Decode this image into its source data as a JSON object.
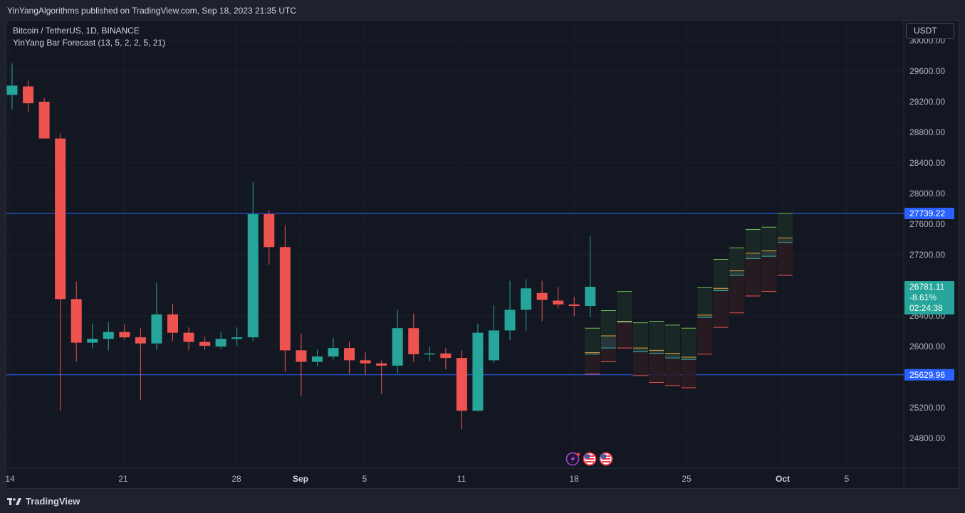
{
  "header": {
    "published": "YinYangAlgorithms published on TradingView.com, Sep 18, 2023 21:35 UTC"
  },
  "legend": {
    "symbol": "Bitcoin / TetherUS, 1D, BINANCE",
    "indicator": "YinYang Bar Forecast (13, 5, 2, 2, 5, 21)"
  },
  "currency_button": "USDT",
  "footer": {
    "brand": "TradingView"
  },
  "colors": {
    "up": "#26a69a",
    "down": "#ef5350",
    "level_line": "#2962ff",
    "background": "#131722"
  },
  "price_axis": {
    "ticks": [
      "30000.00",
      "29600.00",
      "29200.00",
      "28800.00",
      "28400.00",
      "28000.00",
      "27600.00",
      "27200.00",
      "26400.00",
      "26000.00",
      "25200.00",
      "24800.00"
    ],
    "tick_values": [
      30000,
      29600,
      29200,
      28800,
      28400,
      28000,
      27600,
      27200,
      26400,
      26000,
      25200,
      24800
    ],
    "labels": {
      "upper_level": "27739.22",
      "last_price": "26781.11",
      "change": "-8.61%",
      "countdown": "02:24:38",
      "lower_level": "25629.96"
    }
  },
  "time_axis": {
    "labels": [
      "14",
      "21",
      "28",
      "Sep",
      "5",
      "11",
      "18",
      "25",
      "Oct",
      "5"
    ]
  },
  "chart_data": {
    "type": "candlestick",
    "levels": [
      27739.22,
      25629.96
    ],
    "last_price": 26781.11,
    "candles": [
      {
        "o": 29290,
        "h": 29700,
        "l": 29100,
        "c": 29410
      },
      {
        "o": 29400,
        "h": 29480,
        "l": 29070,
        "c": 29180
      },
      {
        "o": 29200,
        "h": 29250,
        "l": 28720,
        "c": 28720
      },
      {
        "o": 28720,
        "h": 28780,
        "l": 25160,
        "c": 26620
      },
      {
        "o": 26620,
        "h": 26850,
        "l": 25800,
        "c": 26050
      },
      {
        "o": 26050,
        "h": 26300,
        "l": 25980,
        "c": 26100
      },
      {
        "o": 26100,
        "h": 26320,
        "l": 25950,
        "c": 26190
      },
      {
        "o": 26190,
        "h": 26290,
        "l": 26090,
        "c": 26120
      },
      {
        "o": 26120,
        "h": 26240,
        "l": 25300,
        "c": 26040
      },
      {
        "o": 26040,
        "h": 26830,
        "l": 25960,
        "c": 26420
      },
      {
        "o": 26420,
        "h": 26560,
        "l": 26070,
        "c": 26180
      },
      {
        "o": 26180,
        "h": 26250,
        "l": 25950,
        "c": 26060
      },
      {
        "o": 26060,
        "h": 26130,
        "l": 25960,
        "c": 26010
      },
      {
        "o": 26000,
        "h": 26190,
        "l": 25970,
        "c": 26100
      },
      {
        "o": 26100,
        "h": 26250,
        "l": 26010,
        "c": 26120
      },
      {
        "o": 26120,
        "h": 28150,
        "l": 26070,
        "c": 27730
      },
      {
        "o": 27730,
        "h": 27780,
        "l": 27070,
        "c": 27300
      },
      {
        "o": 27300,
        "h": 27590,
        "l": 25670,
        "c": 25950
      },
      {
        "o": 25950,
        "h": 26170,
        "l": 25350,
        "c": 25800
      },
      {
        "o": 25800,
        "h": 25960,
        "l": 25740,
        "c": 25870
      },
      {
        "o": 25870,
        "h": 26110,
        "l": 25830,
        "c": 25980
      },
      {
        "o": 25980,
        "h": 26060,
        "l": 25640,
        "c": 25820
      },
      {
        "o": 25820,
        "h": 25920,
        "l": 25630,
        "c": 25780
      },
      {
        "o": 25780,
        "h": 25820,
        "l": 25380,
        "c": 25750
      },
      {
        "o": 25750,
        "h": 26480,
        "l": 25650,
        "c": 26240
      },
      {
        "o": 26240,
        "h": 26430,
        "l": 25800,
        "c": 25900
      },
      {
        "o": 25900,
        "h": 26000,
        "l": 25810,
        "c": 25910
      },
      {
        "o": 25910,
        "h": 25980,
        "l": 25700,
        "c": 25850
      },
      {
        "o": 25850,
        "h": 25950,
        "l": 24920,
        "c": 25160
      },
      {
        "o": 25160,
        "h": 26300,
        "l": 25150,
        "c": 26180
      },
      {
        "o": 25820,
        "h": 26540,
        "l": 25790,
        "c": 26210
      },
      {
        "o": 26210,
        "h": 26860,
        "l": 26080,
        "c": 26480
      },
      {
        "o": 26480,
        "h": 26880,
        "l": 26200,
        "c": 26760
      },
      {
        "o": 26700,
        "h": 26860,
        "l": 26330,
        "c": 26610
      },
      {
        "o": 26600,
        "h": 26780,
        "l": 26500,
        "c": 26550
      },
      {
        "o": 26550,
        "h": 26650,
        "l": 26400,
        "c": 26530
      },
      {
        "o": 26530,
        "h": 27440,
        "l": 26380,
        "c": 26781.11
      }
    ],
    "forecast": [
      {
        "hi": 26240,
        "ohi": 25920,
        "olo": 25900,
        "lo": 25640
      },
      {
        "hi": 26470,
        "ohi": 26140,
        "olo": 25980,
        "lo": 25800
      },
      {
        "hi": 26720,
        "ohi": 26330,
        "olo": 26320,
        "lo": 25980
      },
      {
        "hi": 26310,
        "ohi": 25980,
        "olo": 25930,
        "lo": 25620
      },
      {
        "hi": 26330,
        "ohi": 25950,
        "olo": 25910,
        "lo": 25530
      },
      {
        "hi": 26280,
        "ohi": 25910,
        "olo": 25850,
        "lo": 25490
      },
      {
        "hi": 26240,
        "ohi": 25860,
        "olo": 25830,
        "lo": 25460
      },
      {
        "hi": 26770,
        "ohi": 26410,
        "olo": 26380,
        "lo": 25900
      },
      {
        "hi": 27140,
        "ohi": 26760,
        "olo": 26730,
        "lo": 26250
      },
      {
        "hi": 27290,
        "ohi": 26990,
        "olo": 26930,
        "lo": 26440
      },
      {
        "hi": 27530,
        "ohi": 27220,
        "olo": 27150,
        "lo": 26660
      },
      {
        "hi": 27560,
        "ohi": 27250,
        "olo": 27180,
        "lo": 26720
      },
      {
        "hi": 27740,
        "ohi": 27420,
        "olo": 27360,
        "lo": 26930
      }
    ]
  }
}
